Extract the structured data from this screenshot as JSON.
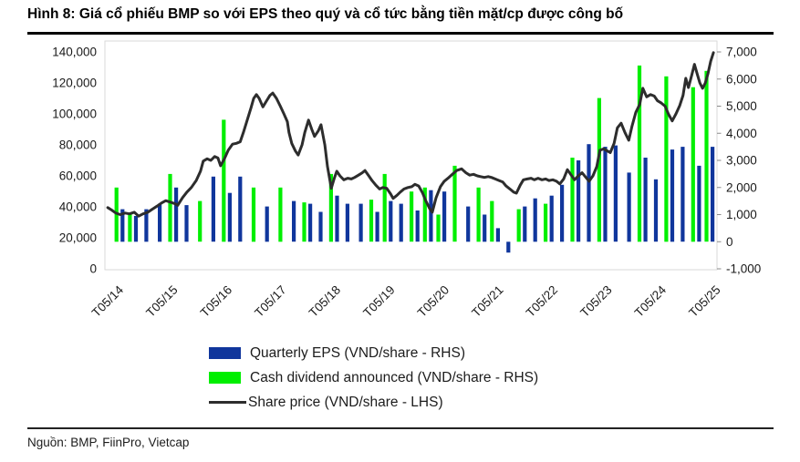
{
  "figure": {
    "title": "Hình 8: Giá cổ phiếu BMP so với EPS theo quý và cổ tức bằng tiền mặt/cp được công bố",
    "source": "Nguồn: BMP, FiinPro, Vietcap"
  },
  "legend": [
    {
      "label": "Quarterly EPS (VND/share - RHS)",
      "color": "#10369c",
      "swatch": "bar"
    },
    {
      "label": "Cash dividend announced (VND/share - RHS)",
      "color": "#00ef00",
      "swatch": "bar"
    },
    {
      "label": "Share price (VND/share - LHS)",
      "color": "#2d2d2d",
      "swatch": "line"
    }
  ],
  "chart_data": {
    "type": "combo-bar-line",
    "title": "Giá cổ phiếu BMP so với EPS theo quý và cổ tức bằng tiền mặt/cp",
    "grid": false,
    "legend_position": "bottom",
    "x_ticks": [
      "T05/14",
      "T05/15",
      "T05/16",
      "T05/17",
      "T05/18",
      "T05/19",
      "T05/20",
      "T05/21",
      "T05/22",
      "T05/23",
      "T05/24",
      "T05/25"
    ],
    "left_axis": {
      "ticks": [
        "140,000",
        "120,000",
        "100,000",
        "80,000",
        "60,000",
        "40,000",
        "20,000",
        "0"
      ],
      "min": 0,
      "max": 140000,
      "unit": "VND/share"
    },
    "right_axis": {
      "ticks": [
        "7,000",
        "6,000",
        "5,000",
        "4,000",
        "3,000",
        "2,000",
        "1,000",
        "0",
        "-1,000"
      ],
      "min": -1000,
      "max": 7000,
      "unit": "VND/share"
    },
    "series": {
      "eps": {
        "name": "Quarterly EPS",
        "color": "#10369c",
        "axis": "RHS"
      },
      "dividend": {
        "name": "Cash dividend announced",
        "color": "#00ef00",
        "axis": "RHS"
      },
      "price": {
        "name": "Share price",
        "color": "#2d2d2d",
        "axis": "LHS"
      }
    },
    "quarters_format": [
      "quarter",
      "eps_vnd_per_share",
      "cash_dividend_vnd_per_share"
    ],
    "quarters": [
      [
        "Q2/14",
        1200,
        2000
      ],
      [
        "Q3/14",
        950,
        1000
      ],
      [
        "Q4/14",
        1200,
        null
      ],
      [
        "Q1/15",
        1400,
        null
      ],
      [
        "Q2/15",
        2000,
        2500
      ],
      [
        "Q3/15",
        1350,
        null
      ],
      [
        "Q4/15",
        null,
        1500
      ],
      [
        "Q1/16",
        2400,
        null
      ],
      [
        "Q2/16",
        1800,
        4500
      ],
      [
        "Q3/16",
        2400,
        null
      ],
      [
        "Q4/16",
        null,
        2000
      ],
      [
        "Q1/17",
        1300,
        null
      ],
      [
        "Q2/17",
        null,
        2000
      ],
      [
        "Q3/17",
        1500,
        null
      ],
      [
        "Q4/17",
        1400,
        1450
      ],
      [
        "Q1/18",
        1100,
        null
      ],
      [
        "Q2/18",
        1700,
        2500
      ],
      [
        "Q3/18",
        1400,
        null
      ],
      [
        "Q4/18",
        1400,
        null
      ],
      [
        "Q1/19",
        1100,
        1550
      ],
      [
        "Q2/19",
        1500,
        2500
      ],
      [
        "Q3/19",
        1400,
        null
      ],
      [
        "Q4/19",
        1150,
        1850
      ],
      [
        "Q1/20",
        1900,
        2000
      ],
      [
        "Q2/20",
        1850,
        1000
      ],
      [
        "Q3/20",
        null,
        2800
      ],
      [
        "Q4/20",
        1300,
        null
      ],
      [
        "Q1/21",
        1000,
        2000
      ],
      [
        "Q2/21",
        500,
        1500
      ],
      [
        "Q3/21",
        -400,
        null
      ],
      [
        "Q4/21",
        1300,
        1200
      ],
      [
        "Q1/22",
        1600,
        null
      ],
      [
        "Q2/22",
        1700,
        1400
      ],
      [
        "Q3/22",
        2100,
        null
      ],
      [
        "Q4/22",
        3000,
        3100
      ],
      [
        "Q1/23",
        3600,
        null
      ],
      [
        "Q2/23",
        3500,
        5300
      ],
      [
        "Q3/23",
        3550,
        null
      ],
      [
        "Q4/23",
        2550,
        null
      ],
      [
        "Q1/24",
        3100,
        6500
      ],
      [
        "Q2/24",
        2300,
        null
      ],
      [
        "Q3/24",
        3400,
        6100
      ],
      [
        "Q4/24",
        3500,
        null
      ],
      [
        "Q1/25",
        2800,
        5700
      ],
      [
        "Q2/25",
        3500,
        6300
      ]
    ],
    "price_points_format": [
      "years_after_May2014",
      "price_vnd"
    ],
    "price_points": [
      [
        -0.15,
        39500
      ],
      [
        -0.08,
        38000
      ],
      [
        0,
        36000
      ],
      [
        0.08,
        35000
      ],
      [
        0.17,
        36000
      ],
      [
        0.25,
        35500
      ],
      [
        0.34,
        36500
      ],
      [
        0.42,
        34000
      ],
      [
        0.5,
        35500
      ],
      [
        0.59,
        36500
      ],
      [
        0.67,
        38500
      ],
      [
        0.76,
        40500
      ],
      [
        0.84,
        42500
      ],
      [
        0.92,
        44000
      ],
      [
        1.01,
        43000
      ],
      [
        1.09,
        42000
      ],
      [
        1.14,
        41000
      ],
      [
        1.23,
        46000
      ],
      [
        1.31,
        49500
      ],
      [
        1.39,
        52500
      ],
      [
        1.48,
        57000
      ],
      [
        1.56,
        63000
      ],
      [
        1.61,
        69500
      ],
      [
        1.68,
        71000
      ],
      [
        1.75,
        70000
      ],
      [
        1.82,
        72500
      ],
      [
        1.88,
        71500
      ],
      [
        1.93,
        66500
      ],
      [
        2,
        71000
      ],
      [
        2.07,
        76500
      ],
      [
        2.15,
        80500
      ],
      [
        2.22,
        81000
      ],
      [
        2.29,
        82000
      ],
      [
        2.35,
        88000
      ],
      [
        2.42,
        96000
      ],
      [
        2.49,
        104000
      ],
      [
        2.54,
        110000
      ],
      [
        2.59,
        112500
      ],
      [
        2.64,
        110000
      ],
      [
        2.71,
        104500
      ],
      [
        2.77,
        108000
      ],
      [
        2.84,
        112000
      ],
      [
        2.89,
        113500
      ],
      [
        2.96,
        110000
      ],
      [
        3.03,
        105000
      ],
      [
        3.09,
        100500
      ],
      [
        3.16,
        95000
      ],
      [
        3.19,
        88000
      ],
      [
        3.24,
        81000
      ],
      [
        3.31,
        76000
      ],
      [
        3.36,
        73500
      ],
      [
        3.43,
        80000
      ],
      [
        3.48,
        88000
      ],
      [
        3.55,
        96000
      ],
      [
        3.61,
        90000
      ],
      [
        3.66,
        85500
      ],
      [
        3.73,
        89000
      ],
      [
        3.78,
        93000
      ],
      [
        3.85,
        80000
      ],
      [
        3.9,
        66000
      ],
      [
        3.97,
        52000
      ],
      [
        4.02,
        58000
      ],
      [
        4.07,
        63000
      ],
      [
        4.13,
        60000
      ],
      [
        4.2,
        57500
      ],
      [
        4.27,
        58500
      ],
      [
        4.34,
        58000
      ],
      [
        4.4,
        59000
      ],
      [
        4.47,
        60500
      ],
      [
        4.54,
        62000
      ],
      [
        4.59,
        63500
      ],
      [
        4.66,
        60000
      ],
      [
        4.72,
        57000
      ],
      [
        4.79,
        54000
      ],
      [
        4.86,
        51500
      ],
      [
        4.92,
        52500
      ],
      [
        4.99,
        52000
      ],
      [
        5.06,
        48500
      ],
      [
        5.11,
        45500
      ],
      [
        5.18,
        47500
      ],
      [
        5.24,
        49500
      ],
      [
        5.31,
        51500
      ],
      [
        5.38,
        52500
      ],
      [
        5.45,
        53000
      ],
      [
        5.51,
        54500
      ],
      [
        5.58,
        53500
      ],
      [
        5.65,
        49000
      ],
      [
        5.71,
        44000
      ],
      [
        5.78,
        39000
      ],
      [
        5.83,
        36500
      ],
      [
        5.9,
        46000
      ],
      [
        5.98,
        53000
      ],
      [
        6.05,
        56500
      ],
      [
        6.12,
        58500
      ],
      [
        6.2,
        61000
      ],
      [
        6.28,
        63500
      ],
      [
        6.37,
        64500
      ],
      [
        6.45,
        62000
      ],
      [
        6.52,
        60500
      ],
      [
        6.59,
        61000
      ],
      [
        6.66,
        60000
      ],
      [
        6.72,
        59500
      ],
      [
        6.79,
        59000
      ],
      [
        6.86,
        59500
      ],
      [
        6.92,
        59000
      ],
      [
        6.99,
        58000
      ],
      [
        7.06,
        57000
      ],
      [
        7.13,
        56000
      ],
      [
        7.19,
        53500
      ],
      [
        7.26,
        51500
      ],
      [
        7.33,
        49500
      ],
      [
        7.38,
        48800
      ],
      [
        7.45,
        54000
      ],
      [
        7.51,
        57500
      ],
      [
        7.58,
        58000
      ],
      [
        7.65,
        58500
      ],
      [
        7.71,
        57500
      ],
      [
        7.78,
        58500
      ],
      [
        7.85,
        57500
      ],
      [
        7.92,
        58000
      ],
      [
        7.98,
        57000
      ],
      [
        8.05,
        57500
      ],
      [
        8.12,
        56500
      ],
      [
        8.18,
        54800
      ],
      [
        8.25,
        58000
      ],
      [
        8.32,
        64000
      ],
      [
        8.39,
        60500
      ],
      [
        8.45,
        57500
      ],
      [
        8.52,
        60000
      ],
      [
        8.59,
        62000
      ],
      [
        8.66,
        59000
      ],
      [
        8.72,
        56500
      ],
      [
        8.79,
        60000
      ],
      [
        8.86,
        66000
      ],
      [
        8.92,
        76500
      ],
      [
        8.99,
        77500
      ],
      [
        9.06,
        76000
      ],
      [
        9.11,
        75000
      ],
      [
        9.18,
        81000
      ],
      [
        9.24,
        91000
      ],
      [
        9.31,
        94000
      ],
      [
        9.38,
        88000
      ],
      [
        9.45,
        83000
      ],
      [
        9.51,
        92000
      ],
      [
        9.58,
        101000
      ],
      [
        9.65,
        106000
      ],
      [
        9.71,
        116500
      ],
      [
        9.78,
        111000
      ],
      [
        9.85,
        112500
      ],
      [
        9.92,
        111500
      ],
      [
        9.98,
        108500
      ],
      [
        10.05,
        107000
      ],
      [
        10.12,
        105000
      ],
      [
        10.18,
        100000
      ],
      [
        10.25,
        95500
      ],
      [
        10.32,
        100000
      ],
      [
        10.39,
        105500
      ],
      [
        10.45,
        112000
      ],
      [
        10.5,
        123000
      ],
      [
        10.55,
        117000
      ],
      [
        10.61,
        125000
      ],
      [
        10.66,
        132000
      ],
      [
        10.71,
        126000
      ],
      [
        10.76,
        120000
      ],
      [
        10.81,
        116500
      ],
      [
        10.86,
        120000
      ],
      [
        10.91,
        126000
      ],
      [
        10.96,
        134000
      ],
      [
        11.01,
        139500
      ]
    ]
  }
}
